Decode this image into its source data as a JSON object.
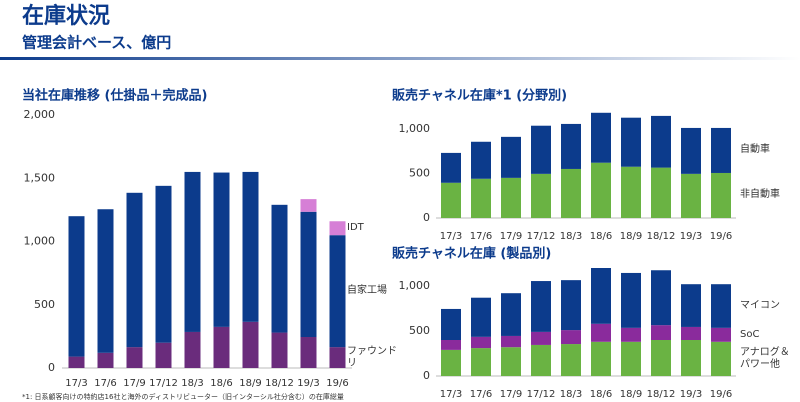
{
  "header": {
    "title": "在庫状況",
    "subtitle": "管理会計ベース、億円"
  },
  "footnote": "*1: 日系顧客向けの特約店16社と海外のディストリビューター（旧インターシル社分含む）の在庫総量",
  "chart_data": [
    {
      "type": "stacked_bar",
      "title": "当社在庫推移 (仕掛品＋完成品)",
      "categories": [
        "17/3",
        "17/6",
        "17/9",
        "17/12",
        "18/3",
        "18/6",
        "18/9",
        "18/12",
        "19/3",
        "19/6"
      ],
      "series": [
        {
          "name": "ファウンドリ",
          "color": "#6a2c7c",
          "values": [
            90,
            120,
            165,
            200,
            285,
            325,
            365,
            280,
            245,
            165
          ]
        },
        {
          "name": "自家工場",
          "color": "#0c3b8c",
          "values": [
            1110,
            1135,
            1220,
            1240,
            1265,
            1220,
            1185,
            1010,
            990,
            885
          ]
        },
        {
          "name": "IDT",
          "color": "#d67fd6",
          "values": [
            null,
            null,
            null,
            null,
            null,
            null,
            null,
            null,
            100,
            110
          ]
        }
      ],
      "ylim": [
        0,
        2000
      ],
      "yticks": [
        0,
        500,
        {
          "value": 1000,
          "label": "1,000"
        },
        {
          "value": 1500,
          "label": "1,500"
        },
        {
          "value": 2000,
          "label": "2,000"
        }
      ]
    },
    {
      "type": "stacked_bar",
      "title": "販売チャネル在庫*1 (分野別)",
      "categories": [
        "17/3",
        "17/6",
        "17/9",
        "17/12",
        "18/3",
        "18/6",
        "18/9",
        "18/12",
        "19/3",
        "19/6"
      ],
      "series": [
        {
          "name": "非自動車",
          "color": "#6ab343",
          "values": [
            395,
            440,
            450,
            495,
            550,
            620,
            575,
            565,
            495,
            505
          ]
        },
        {
          "name": "自動車",
          "color": "#0c3b8c",
          "values": [
            335,
            415,
            460,
            540,
            505,
            560,
            550,
            580,
            515,
            505
          ]
        }
      ],
      "ylim": [
        0,
        1200
      ],
      "yticks": [
        0,
        500,
        {
          "value": 1000,
          "label": "1,000"
        }
      ]
    },
    {
      "type": "stacked_bar",
      "title": "販売チャネル在庫 (製品別)",
      "categories": [
        "17/3",
        "17/6",
        "17/9",
        "17/12",
        "18/3",
        "18/6",
        "18/9",
        "18/12",
        "19/3",
        "19/6"
      ],
      "series": [
        {
          "name": "アナログ＆パワー他",
          "color": "#6ab343",
          "values": [
            290,
            310,
            320,
            345,
            355,
            380,
            380,
            400,
            400,
            380
          ]
        },
        {
          "name": "SoC",
          "color": "#8a2b9c",
          "values": [
            110,
            125,
            125,
            145,
            155,
            200,
            155,
            165,
            145,
            155
          ]
        },
        {
          "name": "マイコン",
          "color": "#0c3b8c",
          "values": [
            345,
            435,
            475,
            565,
            555,
            620,
            610,
            610,
            475,
            485
          ]
        }
      ],
      "ylim": [
        0,
        1200
      ],
      "yticks": [
        0,
        500,
        {
          "value": 1000,
          "label": "1,000"
        }
      ]
    }
  ]
}
